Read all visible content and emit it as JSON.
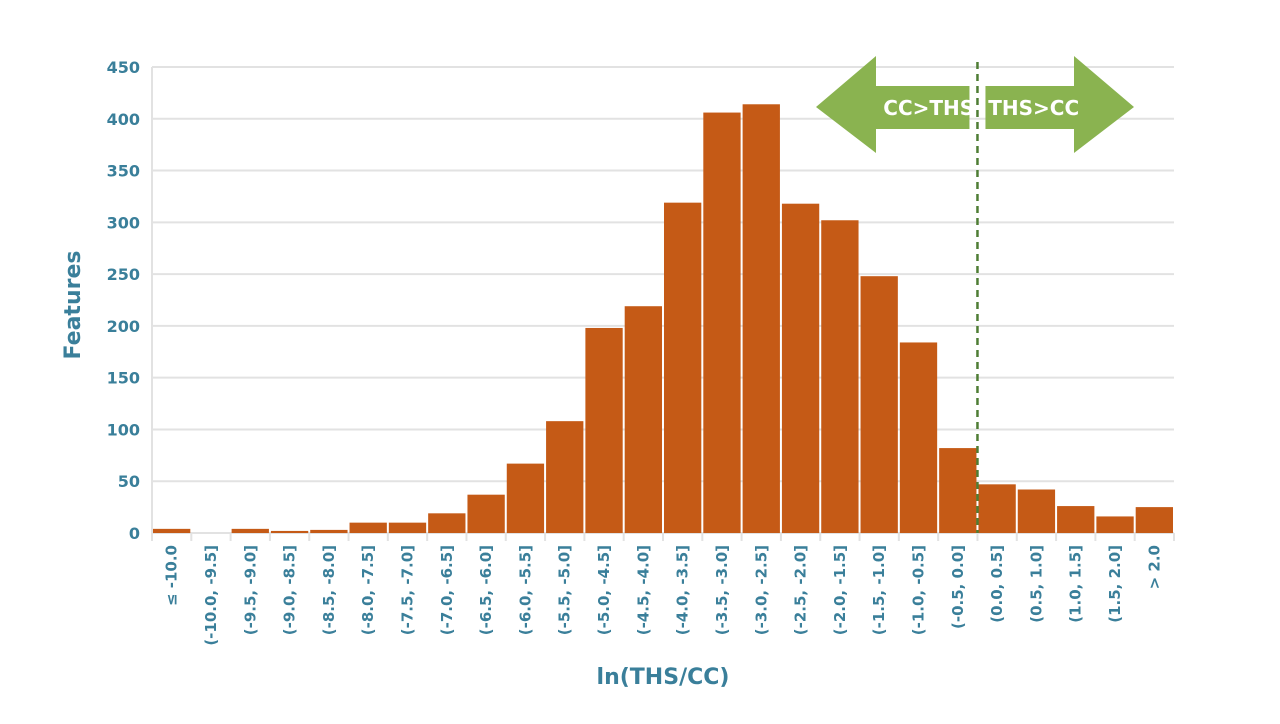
{
  "chart_data": {
    "type": "bar",
    "title": "",
    "xlabel": "ln(THS/CC)",
    "ylabel": "Features",
    "ylim": [
      0,
      450
    ],
    "yticks": [
      0,
      50,
      100,
      150,
      200,
      250,
      300,
      350,
      400,
      450
    ],
    "grid": true,
    "categories": [
      "≤ -10.0",
      "(-10.0, -9.5]",
      "(-9.5, -9.0]",
      "(-9.0, -8.5]",
      "(-8.5, -8.0]",
      "(-8.0, -7.5]",
      "(-7.5, -7.0]",
      "(-7.0, -6.5]",
      "(-6.5, -6.0]",
      "(-6.0, -5.5]",
      "(-5.5, -5.0]",
      "(-5.0, -4.5]",
      "(-4.5, -4.0]",
      "(-4.0, -3.5]",
      "(-3.5, -3.0]",
      "(-3.0, -2.5]",
      "(-2.5, -2.0]",
      "(-2.0, -1.5]",
      "(-1.5, -1.0]",
      "(-1.0, -0.5]",
      "(-0.5, 0.0]",
      "(0.0, 0.5]",
      "(0.5, 1.0]",
      "(1.0, 1.5]",
      "(1.5, 2.0]",
      "> 2.0"
    ],
    "values": [
      4,
      0,
      4,
      2,
      3,
      10,
      10,
      19,
      37,
      67,
      108,
      198,
      219,
      319,
      406,
      414,
      318,
      302,
      248,
      184,
      82,
      47,
      42,
      26,
      16,
      25
    ],
    "reference_line_x": 0.0,
    "annotations": [
      {
        "text": "CC>THS",
        "direction": "left"
      },
      {
        "text": "THS>CC",
        "direction": "right"
      }
    ],
    "colors": {
      "bar": "#c55a16",
      "axis_text": "#3a7f9a",
      "grid": "#e2e2e2",
      "arrow": "#8ab350",
      "reference_line": "#4e7d34"
    }
  }
}
